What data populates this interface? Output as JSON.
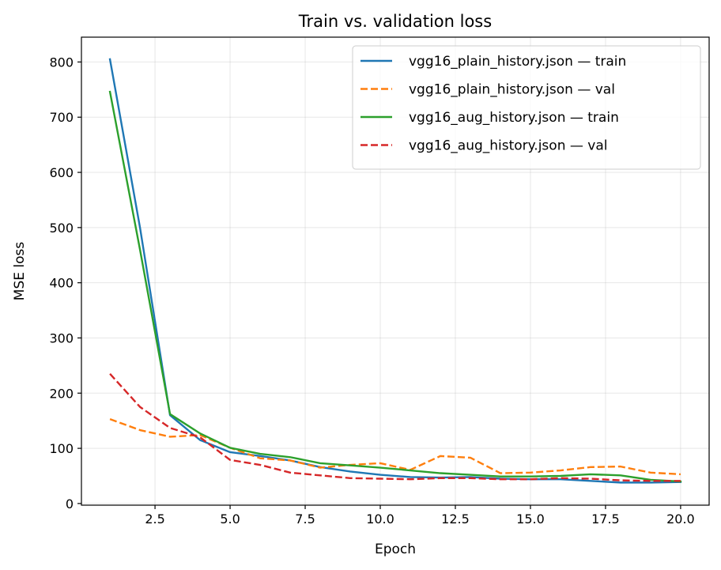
{
  "chart_data": {
    "type": "line",
    "title": "Train vs. validation loss",
    "xlabel": "Epoch",
    "ylabel": "MSE loss",
    "xlim": [
      0.05,
      20.95
    ],
    "ylim": [
      -3,
      845
    ],
    "xticks": [
      2.5,
      5.0,
      7.5,
      10.0,
      12.5,
      15.0,
      17.5,
      20.0
    ],
    "xtick_labels": [
      "2.5",
      "5.0",
      "7.5",
      "10.0",
      "12.5",
      "15.0",
      "17.5",
      "20.0"
    ],
    "yticks": [
      0,
      100,
      200,
      300,
      400,
      500,
      600,
      700,
      800
    ],
    "ytick_labels": [
      "0",
      "100",
      "200",
      "300",
      "400",
      "500",
      "600",
      "700",
      "800"
    ],
    "grid": true,
    "legend_position": "top-right",
    "x": [
      1,
      2,
      3,
      4,
      5,
      6,
      7,
      8,
      9,
      10,
      11,
      12,
      13,
      14,
      15,
      16,
      17,
      18,
      19,
      20
    ],
    "series": [
      {
        "name": "vgg16_plain_history.json — train",
        "color": "#1f77b4",
        "dash": "solid",
        "values": [
          805,
          500,
          160,
          115,
          93,
          86,
          78,
          66,
          58,
          52,
          48,
          47,
          48,
          45,
          44,
          44,
          41,
          38,
          38,
          39
        ]
      },
      {
        "name": "vgg16_plain_history.json — val",
        "color": "#ff7f0e",
        "dash": "dashed",
        "values": [
          153,
          133,
          121,
          124,
          101,
          82,
          78,
          65,
          70,
          73,
          61,
          86,
          83,
          55,
          56,
          60,
          66,
          67,
          56,
          53
        ]
      },
      {
        "name": "vgg16_aug_history.json — train",
        "color": "#2ca02c",
        "dash": "solid",
        "values": [
          746,
          460,
          162,
          127,
          101,
          90,
          84,
          73,
          69,
          65,
          60,
          55,
          52,
          49,
          49,
          50,
          53,
          51,
          43,
          40
        ]
      },
      {
        "name": "vgg16_aug_history.json — val",
        "color": "#d62728",
        "dash": "dashed",
        "values": [
          235,
          175,
          137,
          120,
          79,
          70,
          56,
          51,
          46,
          45,
          44,
          46,
          46,
          44,
          44,
          46,
          45,
          42,
          41,
          41
        ]
      }
    ]
  }
}
